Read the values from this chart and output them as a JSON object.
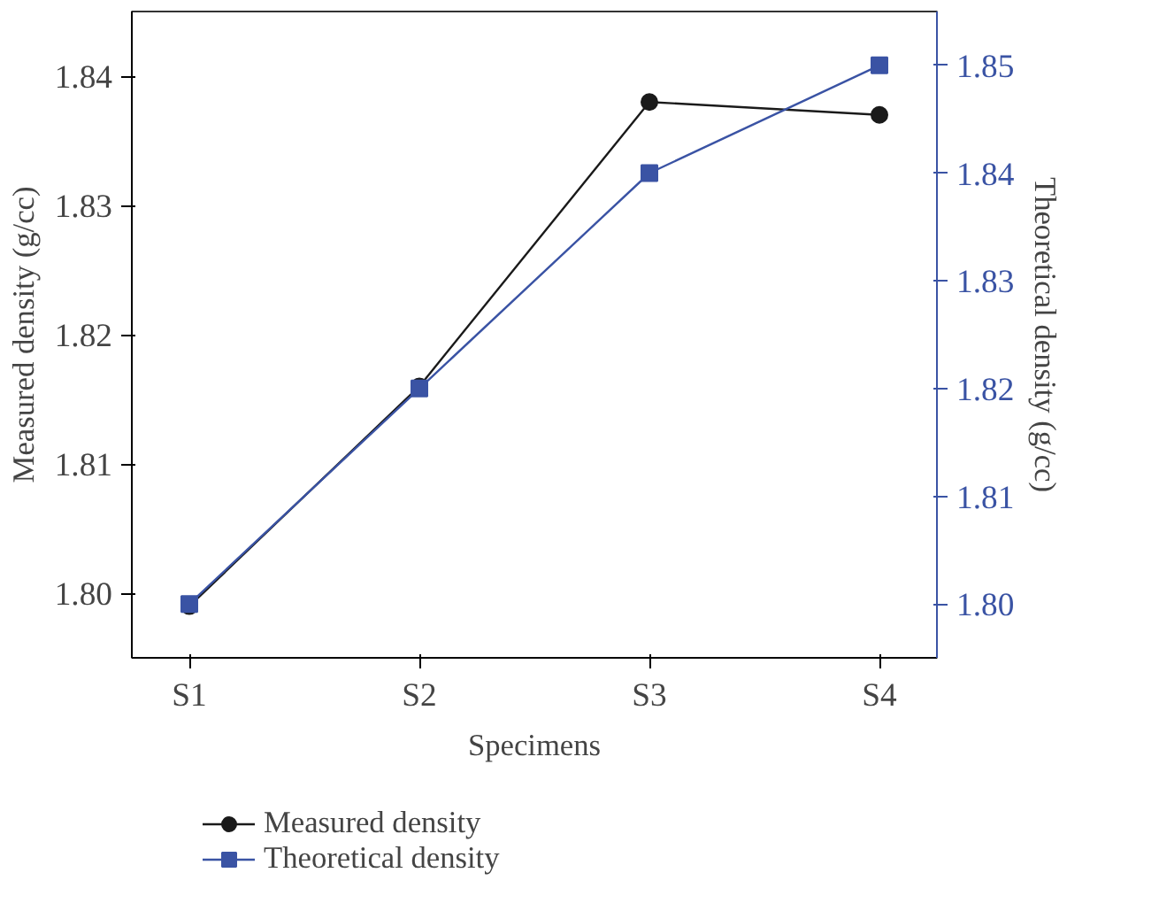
{
  "chart_data": {
    "type": "line",
    "xlabel": "Specimens",
    "ylabel": "Measured density (g/cc)",
    "y2label": "Theoretical density (g/cc)",
    "categories": [
      "S1",
      "S2",
      "S3",
      "S4"
    ],
    "series": [
      {
        "name": "Measured density",
        "color": "#1a1a1a",
        "marker": "circle",
        "values": [
          1.799,
          1.816,
          1.838,
          1.837
        ]
      },
      {
        "name": "Theoretical density",
        "color": "#3a53a4",
        "marker": "square",
        "axis": "y2",
        "values": [
          1.8,
          1.82,
          1.84,
          1.85
        ]
      }
    ],
    "ylim": [
      1.795,
      1.845
    ],
    "yticks": [
      {
        "value": 1.8,
        "label": "1.80"
      },
      1.81,
      1.82,
      1.83,
      1.84
    ],
    "y2lim": [
      1.795,
      1.855
    ],
    "y2ticks": [
      {
        "value": 1.8,
        "label": "1.80"
      },
      1.81,
      1.82,
      1.83,
      1.84,
      1.85
    ],
    "grid": false,
    "legend": "bottom left",
    "line_style": "solid"
  }
}
